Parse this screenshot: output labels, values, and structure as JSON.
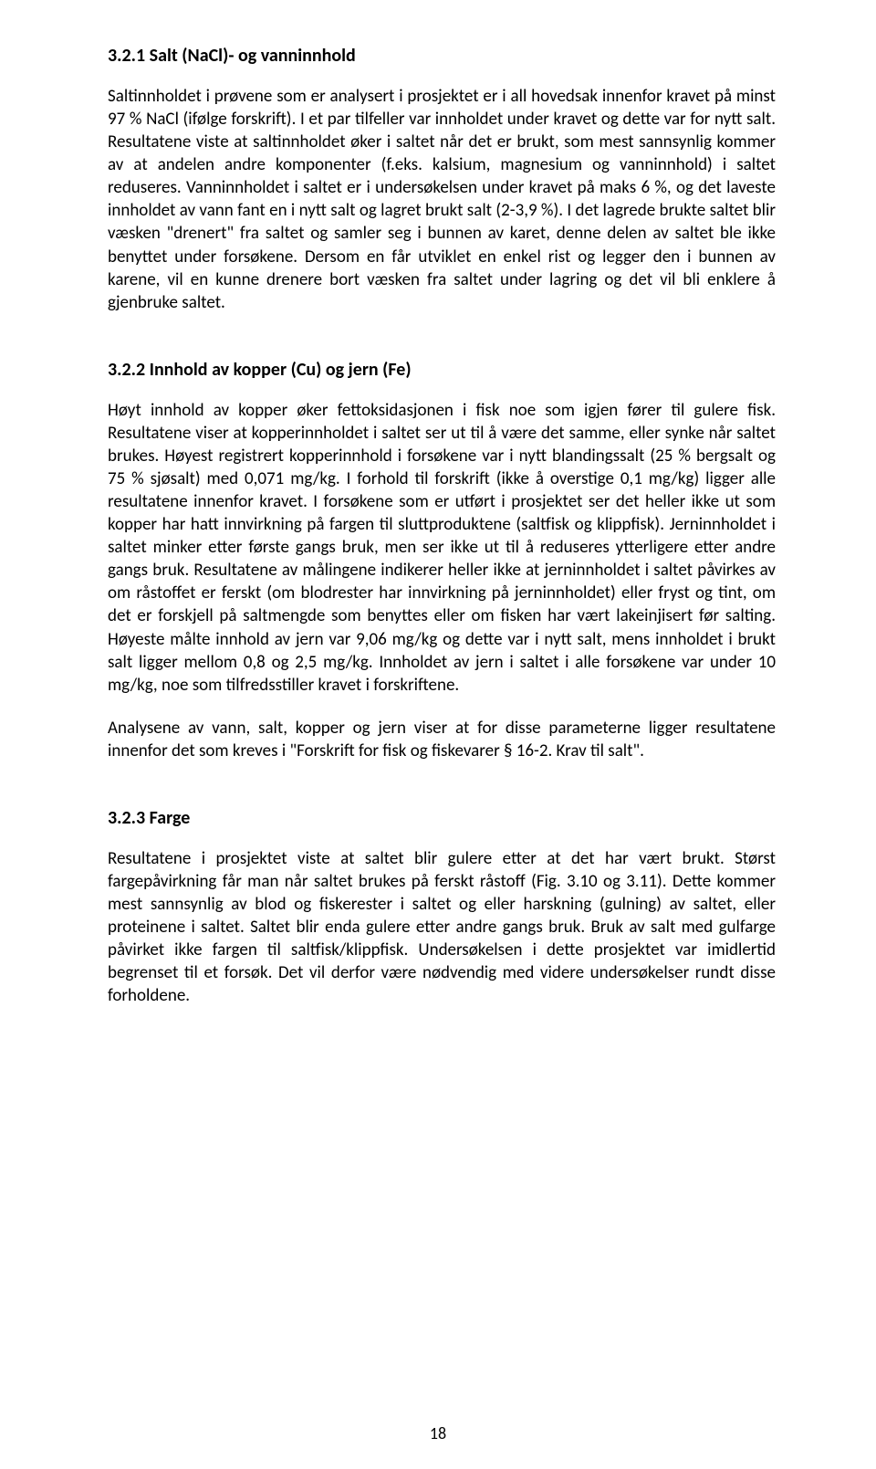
{
  "page": {
    "background_color": "#ffffff",
    "text_color": "#000000",
    "heading_fontsize": 20,
    "body_fontsize": 19,
    "font_family": "Calibri"
  },
  "section1": {
    "heading": "3.2.1 Salt (NaCl)- og vanninnhold",
    "p1": "Saltinnholdet i prøvene som er analysert i prosjektet er i all hovedsak innenfor kravet på minst 97 % NaCl (ifølge forskrift). I et par tilfeller var innholdet under kravet og dette var for nytt salt. Resultatene viste at saltinnholdet øker i saltet når det er brukt, som mest sannsynlig kommer av at andelen andre komponenter (f.eks. kalsium, magnesium og vanninnhold) i saltet reduseres. Vanninnholdet i saltet er i undersøkelsen under kravet på maks 6 %, og det laveste innholdet av vann fant en i nytt salt og lagret brukt salt (2-3,9 %). I det lagrede brukte saltet blir væsken \"drenert\" fra saltet og samler seg i bunnen av karet, denne delen av saltet ble ikke benyttet under forsøkene. Dersom en får utviklet en enkel rist og legger den i bunnen av karene, vil en kunne drenere bort væsken fra saltet under lagring og det vil bli enklere å gjenbruke saltet."
  },
  "section2": {
    "heading": "3.2.2 Innhold av kopper (Cu) og jern (Fe)",
    "p1": "Høyt innhold av kopper øker fettoksidasjonen i fisk noe som igjen fører til gulere fisk. Resultatene viser at kopperinnholdet i saltet ser ut til å være det samme, eller synke når saltet brukes. Høyest registrert kopperinnhold i forsøkene var i nytt blandingssalt (25 % bergsalt og 75 % sjøsalt) med 0,071 mg/kg. I forhold til forskrift (ikke å overstige 0,1 mg/kg) ligger alle resultatene innenfor kravet. I forsøkene som er utført i prosjektet ser det heller ikke ut som kopper har hatt innvirkning på fargen til sluttproduktene (saltfisk og klippfisk). Jerninnholdet i saltet minker etter første gangs bruk, men ser ikke ut til å reduseres ytterligere etter andre gangs bruk. Resultatene av målingene indikerer heller ikke at jerninnholdet i saltet påvirkes av om råstoffet er ferskt (om blodrester har innvirkning på jerninnholdet) eller fryst og tint, om det er forskjell på saltmengde som benyttes eller om fisken har vært lakeinjisert før salting. Høyeste målte innhold av jern var 9,06 mg/kg og dette var i nytt salt, mens innholdet i brukt salt ligger mellom 0,8 og 2,5 mg/kg. Innholdet av jern i saltet i alle forsøkene var under 10 mg/kg, noe som tilfredsstiller kravet i forskriftene.",
    "p2": "Analysene av vann, salt, kopper og jern viser at for disse parameterne ligger resultatene innenfor det som kreves i \"Forskrift for fisk og fiskevarer § 16-2. Krav til salt\"."
  },
  "section3": {
    "heading": "3.2.3 Farge",
    "p1": "Resultatene i prosjektet viste at saltet blir gulere etter at det har vært brukt. Størst fargepåvirkning får man når saltet brukes på ferskt råstoff (Fig. 3.10 og 3.11). Dette kommer mest sannsynlig av blod og fiskerester i saltet og eller harskning (gulning) av saltet, eller proteinene i saltet. Saltet blir enda gulere etter andre gangs bruk. Bruk av salt med gulfarge påvirket ikke fargen til saltfisk/klippfisk. Undersøkelsen i dette prosjektet var imidlertid begrenset til et forsøk. Det vil derfor være nødvendig med videre undersøkelser rundt disse forholdene."
  },
  "pageNumber": "18"
}
